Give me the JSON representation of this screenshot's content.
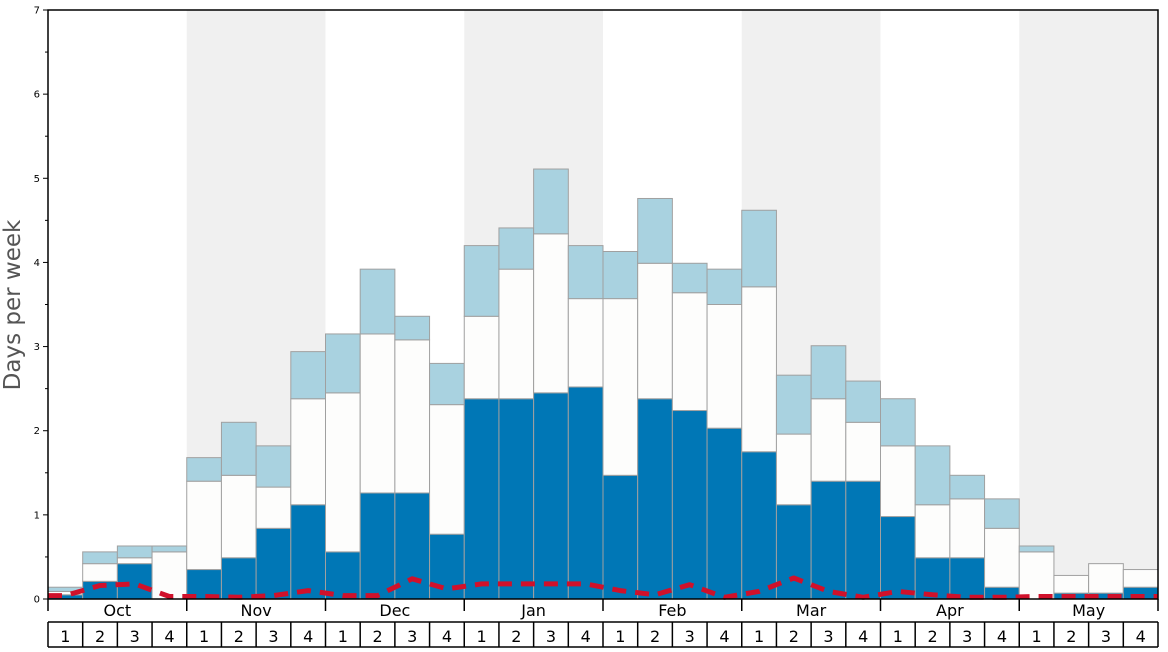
{
  "chart_data": {
    "type": "bar",
    "ylabel": "Days per week",
    "ylim": [
      0,
      7
    ],
    "y_ticks": [
      "0",
      "1",
      "2",
      "3",
      "4",
      "5",
      "6",
      "7"
    ],
    "months": [
      "Oct",
      "Nov",
      "Dec",
      "Jan",
      "Feb",
      "Mar",
      "Apr",
      "May"
    ],
    "week_labels": [
      "1",
      "2",
      "3",
      "4"
    ],
    "shaded_months": [
      "Nov",
      "Jan",
      "Mar",
      "May"
    ],
    "stacked": true,
    "series": [
      {
        "values": [
          0.05,
          0.21,
          0.42,
          0.0,
          0.35,
          0.49,
          0.84,
          1.12,
          0.56,
          1.26,
          1.26,
          0.77,
          2.38,
          2.38,
          2.45,
          2.52,
          1.47,
          2.38,
          2.24,
          2.03,
          1.75,
          1.12,
          1.4,
          1.4,
          0.98,
          0.49,
          0.49,
          0.14,
          0.0,
          0.07,
          0.07,
          0.14
        ]
      },
      {
        "values": [
          0.04,
          0.21,
          0.07,
          0.56,
          1.05,
          0.98,
          0.49,
          1.26,
          1.89,
          1.89,
          1.82,
          1.54,
          0.98,
          1.54,
          1.89,
          1.05,
          2.1,
          1.61,
          1.4,
          1.47,
          1.96,
          0.84,
          0.98,
          0.7,
          0.84,
          0.63,
          0.7,
          0.7,
          0.56,
          0.21,
          0.35,
          0.21
        ]
      },
      {
        "values": [
          0.05,
          0.14,
          0.14,
          0.07,
          0.28,
          0.63,
          0.49,
          0.56,
          0.7,
          0.77,
          0.28,
          0.49,
          0.84,
          0.49,
          0.77,
          0.63,
          0.56,
          0.77,
          0.35,
          0.42,
          0.91,
          0.7,
          0.63,
          0.49,
          0.56,
          0.7,
          0.28,
          0.35,
          0.07,
          0.0,
          0.0,
          0.0
        ]
      },
      {
        "values": [
          0.04,
          0.16,
          0.18,
          0.03,
          0.03,
          0.02,
          0.04,
          0.1,
          0.04,
          0.04,
          0.24,
          0.12,
          0.18,
          0.18,
          0.18,
          0.18,
          0.1,
          0.05,
          0.17,
          0.02,
          0.09,
          0.25,
          0.09,
          0.02,
          0.09,
          0.05,
          0.02,
          0.02,
          0.03,
          0.03,
          0.03,
          0.03
        ]
      }
    ],
    "colors": {
      "series_1": "#0077b6",
      "series_2": "#fdfdfc",
      "series_3": "#a9d2e0",
      "series_4": "#d0112b",
      "band": "#f0f0f0",
      "bar_stroke": "#a0a0a0",
      "axis": "#000000",
      "ylabel_color": "#555555"
    }
  }
}
